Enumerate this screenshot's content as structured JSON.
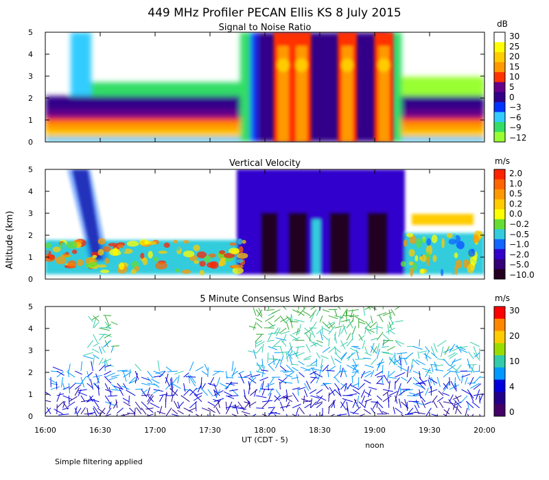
{
  "title": "449 MHz Profiler PECAN Ellis KS  8 July 2015",
  "ylabel": "Altitude (km)",
  "xlabel": "UT (CDT - 5)",
  "noon_label": "noon",
  "footnote": "Simple filtering applied",
  "chart_data": [
    {
      "type": "heatmap",
      "title": "Signal to Noise Ratio",
      "ylabel": "Altitude (km)",
      "units": "dB",
      "xlim_hours": [
        16,
        20
      ],
      "ylim": [
        0,
        5
      ],
      "x_ticks": [
        "16:00",
        "16:30",
        "17:00",
        "17:30",
        "18:00",
        "18:30",
        "19:00",
        "19:30",
        "20:00"
      ],
      "y_ticks": [
        0,
        1,
        2,
        3,
        4,
        5
      ],
      "colorbar": {
        "labels": [
          "30",
          "25",
          "20",
          "15",
          "10",
          "5",
          "0",
          "−3",
          "−6",
          "−9",
          "−12"
        ],
        "colors": [
          "#ffffff",
          "#ffff00",
          "#ffcc00",
          "#ff9900",
          "#ff3300",
          "#660088",
          "#330088",
          "#0033ff",
          "#33ccff",
          "#33dd66",
          "#99ff33"
        ]
      },
      "layers": [
        {
          "alt_km": 0.3,
          "value_db": 20
        },
        {
          "alt_km": 0.9,
          "value_db": 18
        },
        {
          "alt_km": 1.5,
          "value_db": 2
        },
        {
          "alt_km": 2.0,
          "value_db": -6
        },
        {
          "alt_km": 4.5,
          "value_db": -12
        }
      ],
      "plumes": [
        {
          "time": "18:10",
          "top_km": 5.0,
          "peak_db": 22
        },
        {
          "time": "18:20",
          "top_km": 5.0,
          "peak_db": 25
        },
        {
          "time": "18:45",
          "top_km": 5.0,
          "peak_db": 25
        },
        {
          "time": "19:05",
          "top_km": 5.0,
          "peak_db": 25
        }
      ]
    },
    {
      "type": "heatmap",
      "title": "Vertical Velocity",
      "ylabel": "Altitude (km)",
      "units": "m/s",
      "xlim_hours": [
        16,
        20
      ],
      "ylim": [
        0,
        5
      ],
      "x_ticks": [
        "16:00",
        "16:30",
        "17:00",
        "17:30",
        "18:00",
        "18:30",
        "19:00",
        "19:30",
        "20:00"
      ],
      "y_ticks": [
        0,
        1,
        2,
        3,
        4,
        5
      ],
      "colorbar": {
        "labels": [
          "2.0",
          "1.0",
          "0.5",
          "0.2",
          "0.0",
          "−0.2",
          "−0.5",
          "−1.0",
          "−2.0",
          "−5.0",
          "−10.0"
        ],
        "colors": [
          "#ff2200",
          "#ff6600",
          "#ff9900",
          "#ffcc00",
          "#ffff00",
          "#66dd33",
          "#33ccdd",
          "#1166ff",
          "#3300cc",
          "#330077",
          "#220022"
        ]
      },
      "features": [
        {
          "time": "16:15–16:40",
          "alt_km": [
            1.2,
            5.0
          ],
          "w_ms": -5.0
        },
        {
          "time": "16:00–17:55",
          "alt_km": [
            0.3,
            1.9
          ],
          "w_ms": 0.0
        },
        {
          "time": "17:55–19:25",
          "alt_km": [
            0.3,
            5.0
          ],
          "w_ms": -5.0
        },
        {
          "time": "19:25–20:00",
          "alt_km": [
            0.3,
            1.8
          ],
          "w_ms": 0.0
        }
      ]
    },
    {
      "type": "scatter",
      "title": "5 Minute Consensus Wind Barbs",
      "ylabel": "Altitude (km)",
      "units": "m/s",
      "xlim_hours": [
        16,
        20
      ],
      "ylim": [
        0,
        5
      ],
      "x_ticks": [
        "16:00",
        "16:30",
        "17:00",
        "17:30",
        "18:00",
        "18:30",
        "19:00",
        "19:30",
        "20:00"
      ],
      "y_ticks": [
        0,
        1,
        2,
        3,
        4,
        5
      ],
      "colorbar": {
        "labels": [
          "30",
          "20",
          "10",
          "4",
          "0"
        ],
        "colors": [
          "#ff0000",
          "#ff8800",
          "#ffcc00",
          "#99dd00",
          "#33ccaa",
          "#0099ff",
          "#0000dd",
          "#220088",
          "#440066"
        ]
      },
      "wind_summary": [
        {
          "alt_km": 0.5,
          "speed_ms": 3
        },
        {
          "alt_km": 1.5,
          "speed_ms": 4
        },
        {
          "alt_km": 2.5,
          "speed_ms": 6
        },
        {
          "alt_km": 3.5,
          "speed_ms": 8
        },
        {
          "alt_km": 4.5,
          "speed_ms": 10
        }
      ]
    }
  ]
}
